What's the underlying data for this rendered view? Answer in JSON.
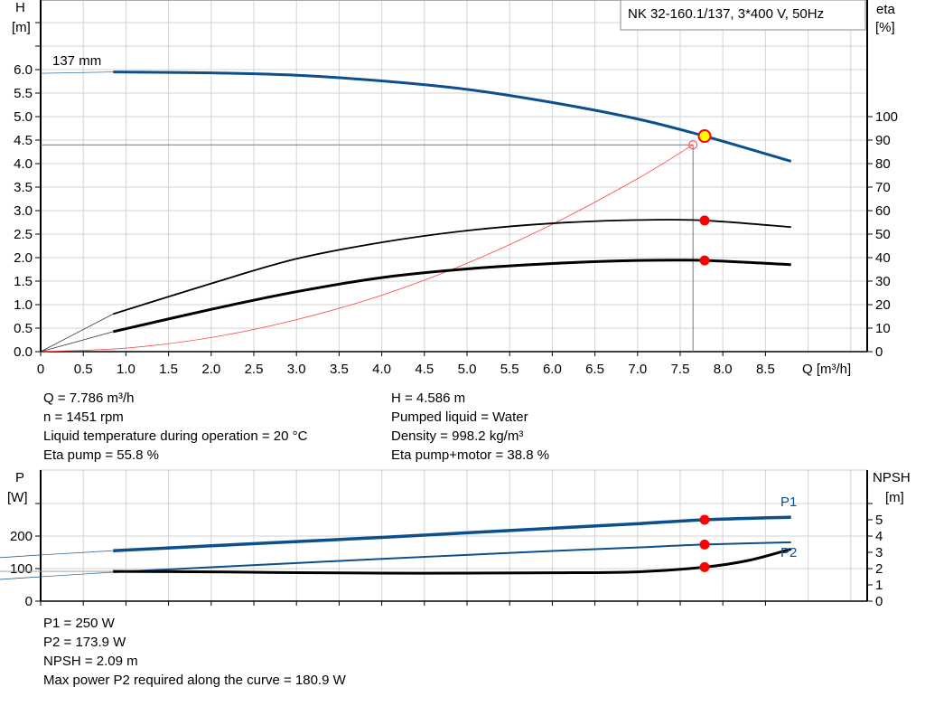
{
  "title": "NK 32-160.1/137, 3*400 V, 50Hz",
  "colors": {
    "head": "#0b4f8c",
    "power": "#0b4f8c",
    "eta": "#000000",
    "npsh": "#000000",
    "system": "#ff4040",
    "duty_point": "#ff0000",
    "duty_point_fill": "#ffff00",
    "grid": "#d3d3d3"
  },
  "chart_data": [
    {
      "type": "line",
      "xlabel": "Q [m³/h]",
      "ylabel_left": "H",
      "ylabel_left_unit": "[m]",
      "ylabel_right": "eta",
      "ylabel_right_unit": "[%]",
      "xlim": [
        0,
        9.5
      ],
      "ylim_left": [
        0,
        7.0
      ],
      "ylim_right": [
        0,
        100
      ],
      "x_ticks": [
        "0",
        "0.5",
        "1.0",
        "1.5",
        "2.0",
        "2.5",
        "3.0",
        "3.5",
        "4.0",
        "4.5",
        "5.0",
        "5.5",
        "6.0",
        "6.5",
        "7.0",
        "7.5",
        "8.0",
        "8.5"
      ],
      "y_left_ticks": [
        "0.0",
        "0.5",
        "1.0",
        "1.5",
        "2.0",
        "2.5",
        "3.0",
        "3.5",
        "4.0",
        "4.5",
        "5.0",
        "5.5",
        "6.0"
      ],
      "y_right_ticks": [
        "0",
        "10",
        "20",
        "30",
        "40",
        "50",
        "60",
        "70",
        "80",
        "90",
        "100"
      ],
      "grid": true,
      "curve_label": "137 mm",
      "series": [
        {
          "key": "H",
          "axis": "left",
          "points": [
            [
              0,
              5.92
            ],
            [
              0.85,
              5.95
            ],
            [
              2,
              5.93
            ],
            [
              3,
              5.88
            ],
            [
              4,
              5.76
            ],
            [
              5,
              5.58
            ],
            [
              6,
              5.3
            ],
            [
              7,
              4.95
            ],
            [
              7.786,
              4.586
            ],
            [
              8.8,
              4.05
            ]
          ],
          "extrapolated_until": 0.85
        },
        {
          "key": "eta_pump",
          "axis": "right",
          "points": [
            [
              0,
              0
            ],
            [
              0.85,
              16
            ],
            [
              2,
              29
            ],
            [
              3,
              39.5
            ],
            [
              4,
              46.5
            ],
            [
              5,
              51.5
            ],
            [
              6,
              54.6
            ],
            [
              7,
              56
            ],
            [
              7.786,
              55.8
            ],
            [
              8.8,
              53
            ]
          ],
          "extrapolated_until": 0.85
        },
        {
          "key": "eta_pump_motor",
          "axis": "right",
          "points": [
            [
              0,
              0
            ],
            [
              0.85,
              8.5
            ],
            [
              2,
              18
            ],
            [
              3,
              25.5
            ],
            [
              4,
              31.5
            ],
            [
              5,
              35.2
            ],
            [
              6,
              37.5
            ],
            [
              7,
              38.8
            ],
            [
              7.786,
              38.8
            ],
            [
              8.8,
              37
            ]
          ],
          "extrapolated_until": 0.85
        },
        {
          "key": "system",
          "axis": "left",
          "points": [
            [
              0,
              0
            ],
            [
              1,
              0.075
            ],
            [
              2,
              0.3
            ],
            [
              3,
              0.68
            ],
            [
              4,
              1.2
            ],
            [
              5,
              1.88
            ],
            [
              6,
              2.71
            ],
            [
              7,
              3.68
            ],
            [
              7.65,
              4.4
            ]
          ]
        }
      ],
      "duty_point": {
        "Q": 7.786,
        "H": 4.586,
        "eta_pump": 55.8,
        "eta_pump_motor": 38.8
      },
      "system_point": {
        "Q": 7.65,
        "H": 4.4
      }
    },
    {
      "type": "line",
      "ylabel_left": "P",
      "ylabel_left_unit": "[W]",
      "ylabel_right": "NPSH",
      "ylabel_right_unit": "[m]",
      "xlim": [
        0,
        9.5
      ],
      "ylim_left": [
        0,
        300
      ],
      "ylim_right": [
        0,
        6
      ],
      "y_left_ticks": [
        "0",
        "100",
        "200"
      ],
      "y_right_ticks": [
        "0",
        "1",
        "2",
        "3",
        "4",
        "5"
      ],
      "grid": true,
      "series": [
        {
          "name": "P1",
          "axis": "left",
          "points": [
            [
              0,
              142
            ],
            [
              0.85,
              155
            ],
            [
              2,
              170
            ],
            [
              3,
              183
            ],
            [
              4,
              196
            ],
            [
              5,
              210
            ],
            [
              6,
              224
            ],
            [
              7,
              238
            ],
            [
              7.786,
              250
            ],
            [
              8.8,
              258
            ]
          ],
          "extrapolated_until": 0.85
        },
        {
          "name": "P2",
          "axis": "left",
          "points": [
            [
              0,
              75
            ],
            [
              0.85,
              89
            ],
            [
              2,
              104
            ],
            [
              3,
              117
            ],
            [
              4,
              130
            ],
            [
              5,
              142
            ],
            [
              6,
              154
            ],
            [
              7,
              165
            ],
            [
              7.786,
              173.9
            ],
            [
              8.8,
              181
            ]
          ],
          "extrapolated_until": 0.85
        },
        {
          "key": "NPSH",
          "axis": "right",
          "points": [
            [
              0.85,
              1.83
            ],
            [
              2,
              1.8
            ],
            [
              3,
              1.75
            ],
            [
              4,
              1.72
            ],
            [
              5,
              1.72
            ],
            [
              6,
              1.74
            ],
            [
              7,
              1.8
            ],
            [
              7.786,
              2.09
            ],
            [
              8.3,
              2.5
            ],
            [
              8.8,
              3.2
            ]
          ],
          "extrapolated_until": 0.85
        }
      ],
      "duty_point": {
        "Q": 7.786,
        "P1": 250,
        "P2": 173.9,
        "NPSH": 2.09
      }
    }
  ],
  "info_top": {
    "q": "Q = 7.786 m³/h",
    "h": "H = 4.586 m",
    "n": "n = 1451 rpm",
    "liquid": "Pumped liquid = Water",
    "temp": "Liquid temperature during operation = 20 °C",
    "density": "Density = 998.2 kg/m³",
    "eta_pump": "Eta pump = 55.8 %",
    "eta_total": "Eta pump+motor = 38.8 %"
  },
  "info_bottom": {
    "p1": "P1 = 250 W",
    "p2": "P2 = 173.9 W",
    "npsh": "NPSH = 2.09 m",
    "max_p2": "Max power P2 required along the curve = 180.9 W"
  }
}
